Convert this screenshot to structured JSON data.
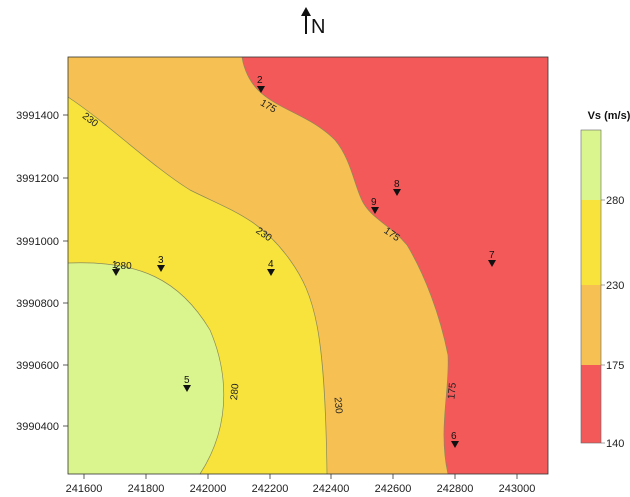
{
  "north_label": "N",
  "map": {
    "x_ticks": [
      "241600",
      "241800",
      "242000",
      "242200",
      "242400",
      "242600",
      "242800",
      "243000"
    ],
    "y_ticks": [
      "3991400",
      "3991200",
      "3991000",
      "3990800",
      "3990600",
      "3990400"
    ],
    "zone_colors": {
      "z280": "#daf58e",
      "z230": "#f7e33c",
      "z175": "#f6c052",
      "z140": "#f4595a"
    },
    "contour_labels": [
      {
        "id": "230-a",
        "text": "230"
      },
      {
        "id": "175-a",
        "text": "175"
      },
      {
        "id": "230-b",
        "text": "230"
      },
      {
        "id": "175-b",
        "text": "175"
      },
      {
        "id": "280-a",
        "text": "280"
      },
      {
        "id": "280-b",
        "text": "280"
      },
      {
        "id": "230-c",
        "text": "230"
      },
      {
        "id": "175-c",
        "text": "175"
      }
    ],
    "sites": [
      {
        "id": "1",
        "label": "1"
      },
      {
        "id": "2",
        "label": "2"
      },
      {
        "id": "3",
        "label": "3"
      },
      {
        "id": "4",
        "label": "4"
      },
      {
        "id": "5",
        "label": "5"
      },
      {
        "id": "6",
        "label": "6"
      },
      {
        "id": "7",
        "label": "7"
      },
      {
        "id": "8",
        "label": "8"
      },
      {
        "id": "9",
        "label": "9"
      }
    ]
  },
  "legend": {
    "title": "Vs (m/s)",
    "labels": [
      "280",
      "230",
      "175",
      "140"
    ]
  }
}
